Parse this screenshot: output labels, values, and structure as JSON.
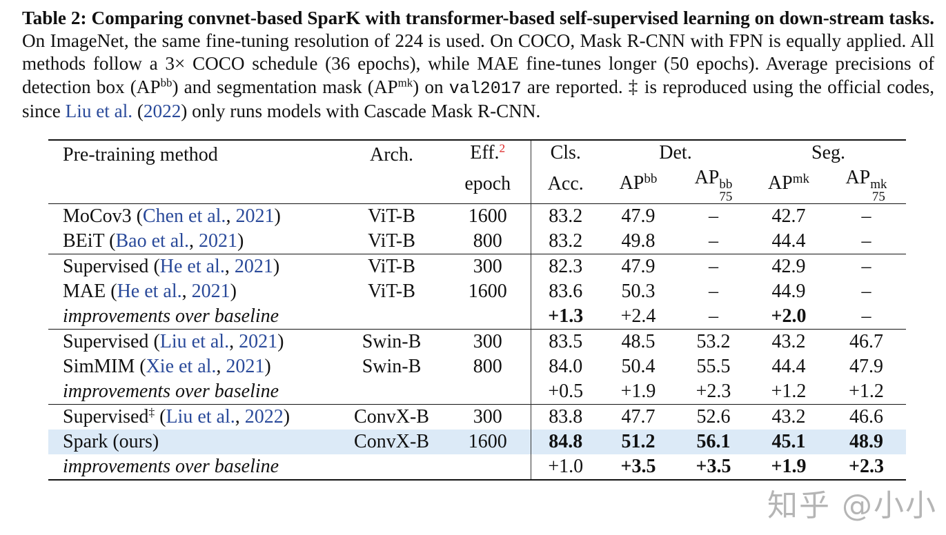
{
  "caption": {
    "label": "Table 2:",
    "bold": "Comparing convnet-based SparK with transformer-based self-supervised learning on down-stream tasks.",
    "t1": " On ImageNet, the same fine-tuning resolution of 224 is used. On COCO, Mask R-CNN with FPN is equally applied. All methods follow a 3× COCO schedule (36 epochs), while MAE fine-tunes longer (50 epochs). Average precisions of detection box (AP",
    "sup_bb": "bb",
    "t2": ") and segmentation mask (AP",
    "sup_mk": "mk",
    "t3": ") on ",
    "mono": "val2017",
    "t4": " are reported. ‡ is reproduced using the official codes, since ",
    "cite_author": "Liu et al.",
    "cite_open": " (",
    "cite_year": "2022",
    "t5": ") only runs models with Cascade Mask R-CNN."
  },
  "header": {
    "method": "Pre-training method",
    "arch": "Arch.",
    "eff": "Eff.",
    "eff_ref": "2",
    "epoch": "epoch",
    "cls": "Cls.",
    "acc": "Acc.",
    "det": "Det.",
    "seg": "Seg.",
    "ap": "AP",
    "bb": "bb",
    "mk": "mk",
    "n75": "75"
  },
  "groups": [
    [
      {
        "method": "MoCov3",
        "cite_author": "Chen et al.",
        "cite_year": "2021",
        "arch": "ViT-B",
        "epoch": "1600",
        "cells": [
          {
            "v": "83.2"
          },
          {
            "v": "47.9"
          },
          {
            "v": "–"
          },
          {
            "v": "42.7"
          },
          {
            "v": "–"
          }
        ]
      },
      {
        "method": "BEiT",
        "cite_author": "Bao et al.",
        "cite_year": "2021",
        "arch": "ViT-B",
        "epoch": "800",
        "cells": [
          {
            "v": "83.2"
          },
          {
            "v": "49.8"
          },
          {
            "v": "–"
          },
          {
            "v": "44.4"
          },
          {
            "v": "–"
          }
        ]
      }
    ],
    [
      {
        "method": "Supervised",
        "cite_author": "He et al.",
        "cite_year": "2021",
        "arch": "ViT-B",
        "epoch": "300",
        "cells": [
          {
            "v": "82.3"
          },
          {
            "v": "47.9"
          },
          {
            "v": "–"
          },
          {
            "v": "42.9"
          },
          {
            "v": "–"
          }
        ]
      },
      {
        "method": "MAE",
        "cite_author": "He et al.",
        "cite_year": "2021",
        "arch": "ViT-B",
        "epoch": "1600",
        "cells": [
          {
            "v": "83.6"
          },
          {
            "v": "50.3"
          },
          {
            "v": "–"
          },
          {
            "v": "44.9"
          },
          {
            "v": "–"
          }
        ]
      },
      {
        "method": "improvements over baseline",
        "italic": true,
        "arch": "",
        "epoch": "",
        "cells": [
          {
            "v": "+1.3",
            "bold": true
          },
          {
            "v": "+2.4"
          },
          {
            "v": "–"
          },
          {
            "v": "+2.0",
            "bold": true
          },
          {
            "v": "–"
          }
        ]
      }
    ],
    [
      {
        "method": "Supervised",
        "cite_author": "Liu et al.",
        "cite_year": "2021",
        "arch": "Swin-B",
        "epoch": "300",
        "cells": [
          {
            "v": "83.5"
          },
          {
            "v": "48.5"
          },
          {
            "v": "53.2"
          },
          {
            "v": "43.2"
          },
          {
            "v": "46.7"
          }
        ]
      },
      {
        "method": "SimMIM",
        "cite_author": "Xie et al.",
        "cite_year": "2021",
        "arch": "Swin-B",
        "epoch": "800",
        "cells": [
          {
            "v": "84.0"
          },
          {
            "v": "50.4"
          },
          {
            "v": "55.5"
          },
          {
            "v": "44.4"
          },
          {
            "v": "47.9"
          }
        ]
      },
      {
        "method": "improvements over baseline",
        "italic": true,
        "arch": "",
        "epoch": "",
        "cells": [
          {
            "v": "+0.5"
          },
          {
            "v": "+1.9"
          },
          {
            "v": "+2.3"
          },
          {
            "v": "+1.2"
          },
          {
            "v": "+1.2"
          }
        ]
      }
    ],
    [
      {
        "method": "Supervised",
        "sup": "‡",
        "cite_author": "Liu et al.",
        "cite_year": "2022",
        "arch": "ConvX-B",
        "epoch": "300",
        "cells": [
          {
            "v": "83.8"
          },
          {
            "v": "47.7"
          },
          {
            "v": "52.6"
          },
          {
            "v": "43.2"
          },
          {
            "v": "46.6"
          }
        ]
      },
      {
        "method": "Spark (ours)",
        "highlight": true,
        "arch": "ConvX-B",
        "epoch": "1600",
        "cells": [
          {
            "v": "84.8",
            "bold": true
          },
          {
            "v": "51.2",
            "bold": true
          },
          {
            "v": "56.1",
            "bold": true
          },
          {
            "v": "45.1",
            "bold": true
          },
          {
            "v": "48.9",
            "bold": true
          }
        ]
      },
      {
        "method": "improvements over baseline",
        "italic": true,
        "arch": "",
        "epoch": "",
        "cells": [
          {
            "v": "+1.0"
          },
          {
            "v": "+3.5",
            "bold": true
          },
          {
            "v": "+3.5",
            "bold": true
          },
          {
            "v": "+1.9",
            "bold": true
          },
          {
            "v": "+2.3",
            "bold": true
          }
        ]
      }
    ]
  ],
  "watermark": "知乎 @小小",
  "colors": {
    "citation": "#2a4a9a",
    "footnote_ref": "#dd2222",
    "highlight": "#dceaf7"
  }
}
